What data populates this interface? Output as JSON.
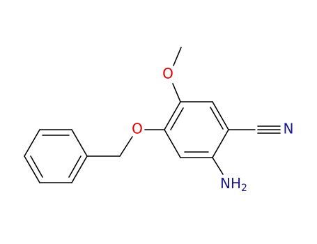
{
  "atoms": [
    {
      "label": "O"
    },
    {
      "label": "O"
    },
    {
      "label": "N"
    },
    {
      "label": "NH",
      "subscript": "2"
    }
  ]
}
